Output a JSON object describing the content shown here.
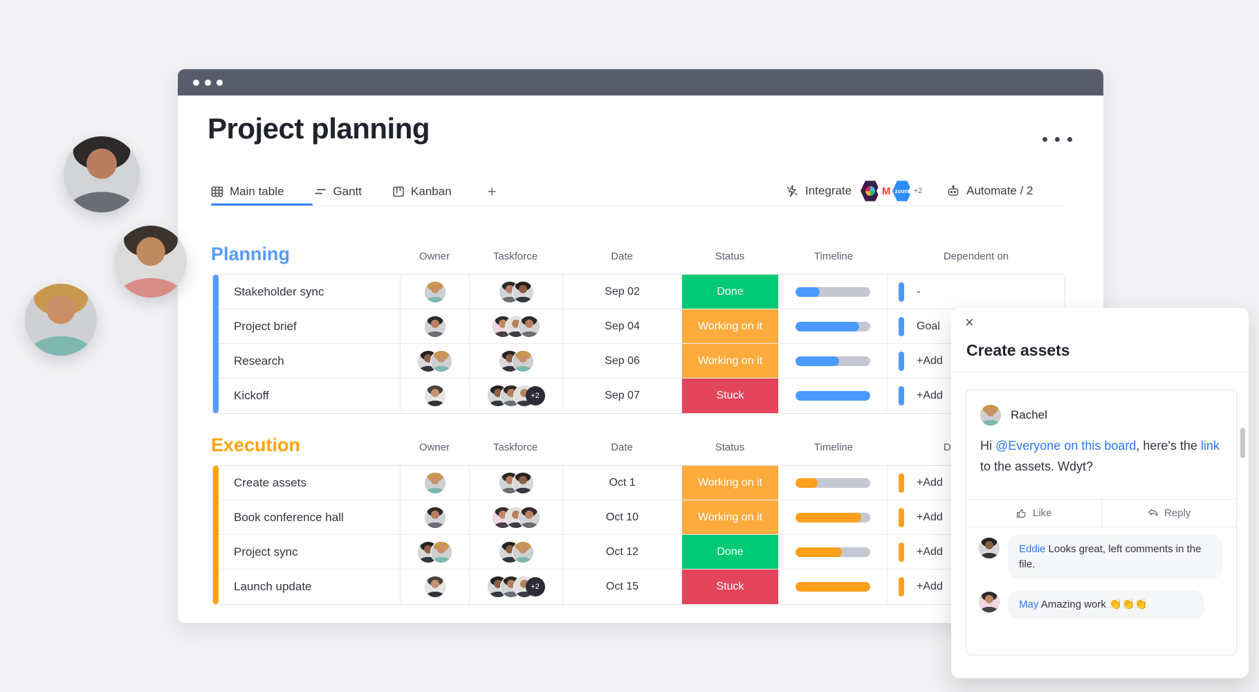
{
  "header": {
    "title": "Project planning"
  },
  "tabs": [
    {
      "label": "Main table"
    },
    {
      "label": "Gantt"
    },
    {
      "label": "Kanban"
    },
    {
      "label": "+"
    }
  ],
  "toolbar": {
    "integrate": "Integrate",
    "gmail_letter": "M",
    "zoom_label": "zoom",
    "more_badge": "+2",
    "automate": "Automate / 2"
  },
  "columns": [
    "Owner",
    "Taskforce",
    "Date",
    "Status",
    "Timeline",
    "Dependent on"
  ],
  "status_colors": {
    "done": "#00c875",
    "working": "#fdab3d",
    "stuck": "#e2445c"
  },
  "groups": [
    {
      "name": "Planning",
      "color": "#579bfc",
      "bar_color": "#4c9aff",
      "rows": [
        {
          "task": "Stakeholder sync",
          "date": "Sep 02",
          "status": "Done",
          "status_color": "#00c875",
          "timeline_pct": 32,
          "dependent": "-"
        },
        {
          "task": "Project brief",
          "date": "Sep 04",
          "status": "Working on it",
          "status_color": "#fdab3d",
          "timeline_pct": 85,
          "dependent": "Goal"
        },
        {
          "task": "Research",
          "date": "Sep 06",
          "status": "Working on it",
          "status_color": "#fdab3d",
          "timeline_pct": 58,
          "dependent": "+Add"
        },
        {
          "task": "Kickoff",
          "date": "Sep 07",
          "status": "Stuck",
          "status_color": "#e2445c",
          "timeline_pct": 100,
          "dependent": "+Add",
          "extra_badge": "+2"
        }
      ]
    },
    {
      "name": "Execution",
      "color": "#ffa202",
      "bar_color": "#ff9f1c",
      "rows": [
        {
          "task": "Create assets",
          "date": "Oct 1",
          "status": "Working on it",
          "status_color": "#fdab3d",
          "timeline_pct": 30,
          "dependent": "+Add"
        },
        {
          "task": "Book conference hall",
          "date": "Oct 10",
          "status": "Working on it",
          "status_color": "#fdab3d",
          "timeline_pct": 88,
          "dependent": "+Add"
        },
        {
          "task": "Project sync",
          "date": "Oct 12",
          "status": "Done",
          "status_color": "#00c875",
          "timeline_pct": 62,
          "dependent": "+Add"
        },
        {
          "task": "Launch update",
          "date": "Oct 15",
          "status": "Stuck",
          "status_color": "#e2445c",
          "timeline_pct": 100,
          "dependent": "+Add",
          "extra_badge": "+2"
        }
      ]
    }
  ],
  "panel": {
    "close": "×",
    "title": "Create assets",
    "update": {
      "author": "Rachel",
      "segments": [
        {
          "text": "Hi "
        },
        {
          "text": "@Everyone on this board"
        },
        {
          "text": ", here's the "
        },
        {
          "text": "link"
        },
        {
          "text": " to the assets. Wdyt?"
        }
      ]
    },
    "actions": {
      "like": "Like",
      "reply": "Reply"
    },
    "comments": [
      {
        "author": "Eddie",
        "text": "Looks great, left comments in the file."
      },
      {
        "author": "May",
        "text": "Amazing work 👏👏👏"
      }
    ]
  }
}
